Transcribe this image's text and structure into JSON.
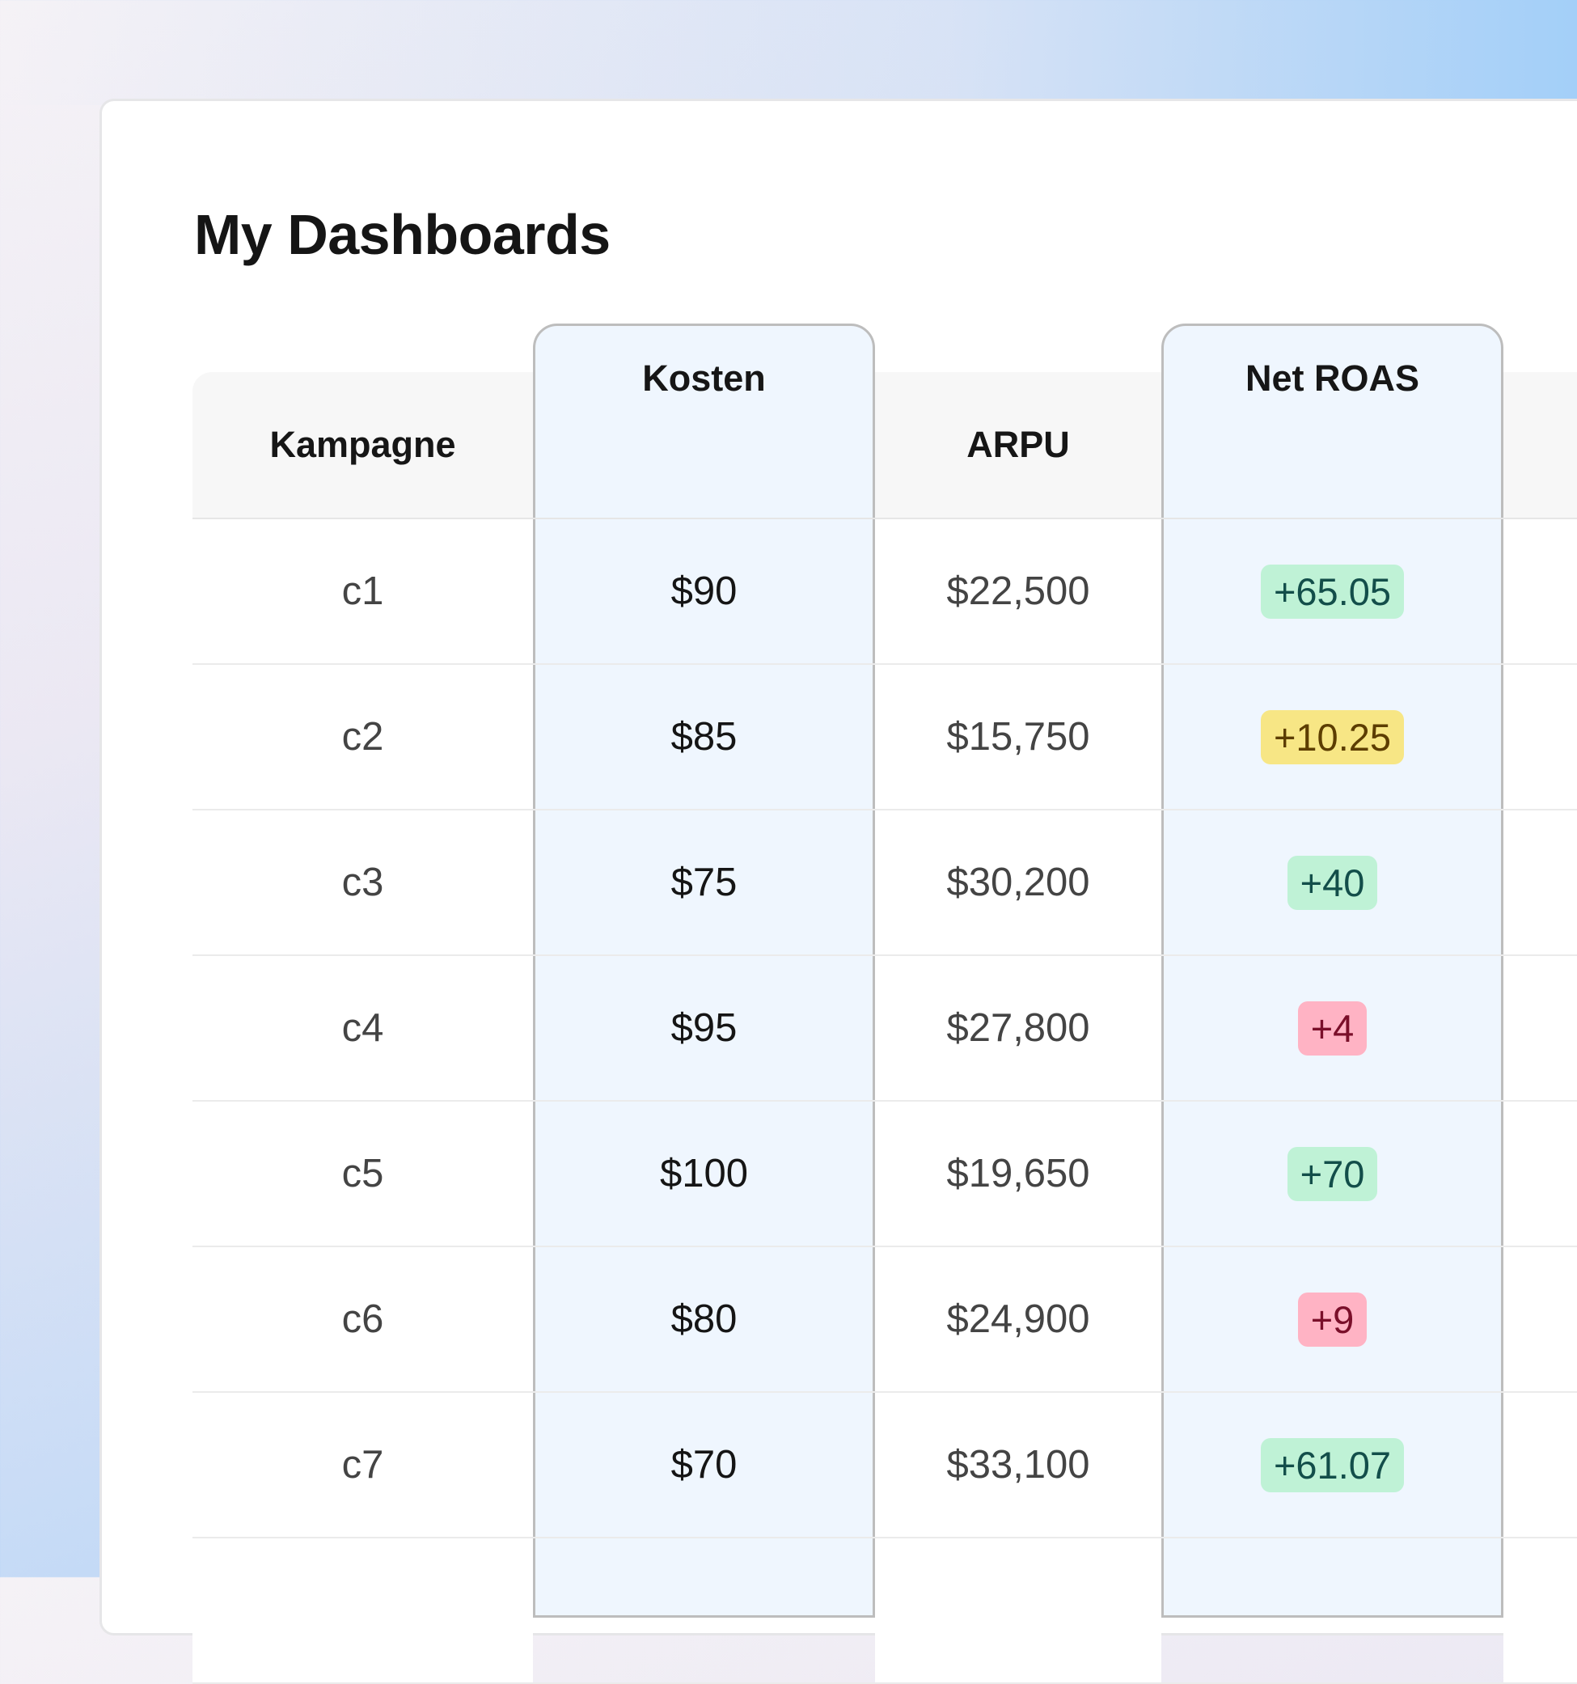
{
  "page": {
    "title": "My Dashboards"
  },
  "table": {
    "columns": [
      "Kampagne",
      "Kosten",
      "ARPU",
      "Net ROAS"
    ],
    "highlighted_columns": [
      "Kosten",
      "Net ROAS"
    ],
    "rows": [
      {
        "kampagne": "c1",
        "kosten": "$90",
        "arpu": "$22,500",
        "net_roas": "+65.05",
        "status": "green"
      },
      {
        "kampagne": "c2",
        "kosten": "$85",
        "arpu": "$15,750",
        "net_roas": "+10.25",
        "status": "yellow"
      },
      {
        "kampagne": "c3",
        "kosten": "$75",
        "arpu": "$30,200",
        "net_roas": "+40",
        "status": "green"
      },
      {
        "kampagne": "c4",
        "kosten": "$95",
        "arpu": "$27,800",
        "net_roas": "+4",
        "status": "red"
      },
      {
        "kampagne": "c5",
        "kosten": "$100",
        "arpu": "$19,650",
        "net_roas": "+70",
        "status": "green"
      },
      {
        "kampagne": "c6",
        "kosten": "$80",
        "arpu": "$24,900",
        "net_roas": "+9",
        "status": "red"
      },
      {
        "kampagne": "c7",
        "kosten": "$70",
        "arpu": "$33,100",
        "net_roas": "+61.07",
        "status": "green"
      }
    ]
  },
  "colors": {
    "green": {
      "bg": "#bff2d6",
      "fg": "#134e4a"
    },
    "yellow": {
      "bg": "#f7e685",
      "fg": "#5c3d00"
    },
    "red": {
      "bg": "#ffb3c4",
      "fg": "#7a0f2a"
    },
    "highlight_column": "#eff6fe"
  }
}
